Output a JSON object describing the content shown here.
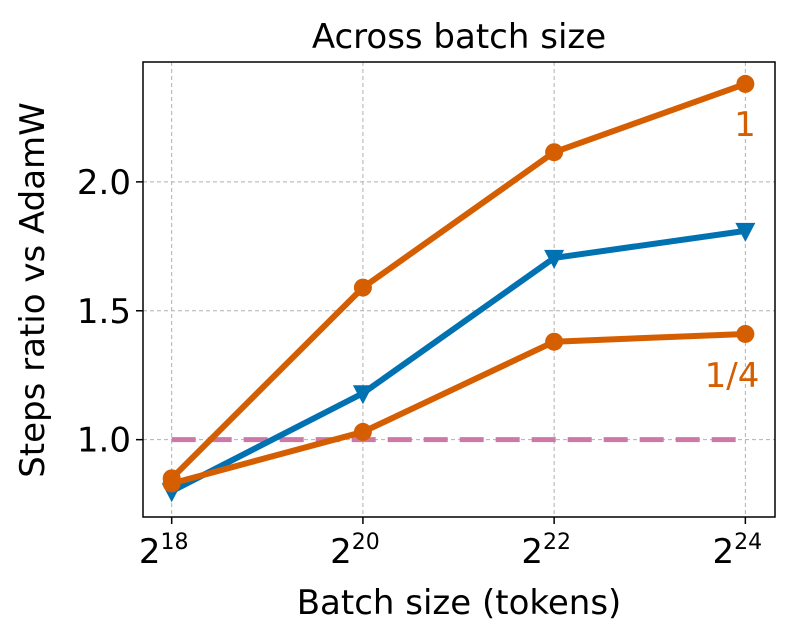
{
  "chart_data": {
    "type": "line",
    "title": "Across batch size",
    "xlabel": "Batch size (tokens)",
    "ylabel": "Steps ratio vs AdamW",
    "x_log2": [
      18,
      20,
      22,
      24
    ],
    "xtick_base": "2",
    "xtick_exps": [
      "18",
      "20",
      "22",
      "24"
    ],
    "yticks": [
      "1.0",
      "1.5",
      "2.0"
    ],
    "ytick_values": [
      1.0,
      1.5,
      2.0
    ],
    "xlim_log2": [
      17.7,
      24.31
    ],
    "ylim": [
      0.7,
      2.465
    ],
    "grid": true,
    "series": [
      {
        "name": "1",
        "label": "1",
        "color": "#d55e00",
        "marker": "circle",
        "values": [
          0.85,
          1.59,
          2.115,
          2.38
        ]
      },
      {
        "name": "blue",
        "color": "#0072b2",
        "marker": "triangle-down",
        "values": [
          0.8,
          1.18,
          1.705,
          1.81
        ]
      },
      {
        "name": "1/4",
        "label": "1/4",
        "color": "#d55e00",
        "marker": "circle",
        "values": [
          0.83,
          1.03,
          1.38,
          1.41
        ]
      }
    ],
    "reference_line": {
      "y": 1.0,
      "color": "#cc79a7",
      "style": "dashed"
    }
  }
}
